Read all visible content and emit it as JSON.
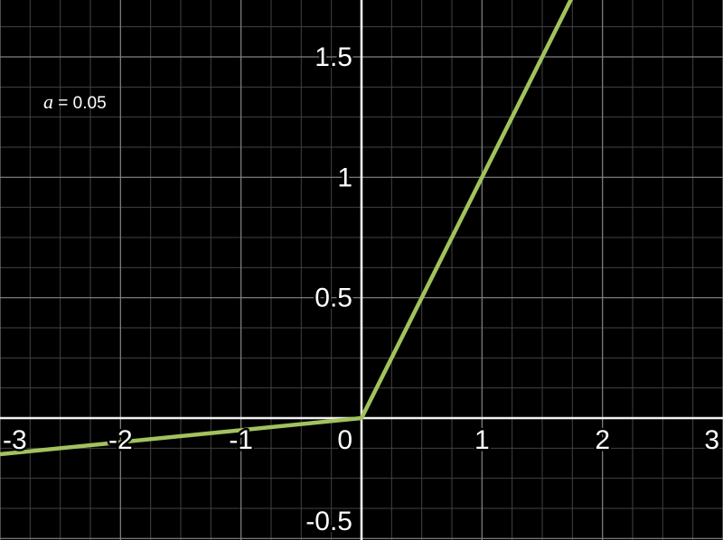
{
  "chart_data": {
    "type": "line",
    "title": "",
    "annotation": {
      "variable": "a",
      "equals": " = 0.05"
    },
    "x_axis": {
      "range": [
        -3,
        3
      ],
      "major_step": 1,
      "minor_step": 0.25,
      "ticks": [
        {
          "value": -3,
          "label": "-3"
        },
        {
          "value": -2,
          "label": "-2"
        },
        {
          "value": -1,
          "label": "-1"
        },
        {
          "value": 0,
          "label": "0"
        },
        {
          "value": 1,
          "label": "1"
        },
        {
          "value": 2,
          "label": "2"
        },
        {
          "value": 3,
          "label": "3"
        }
      ]
    },
    "y_axis": {
      "range": [
        -0.50625,
        1.73625
      ],
      "major_step": 0.5,
      "minor_step": 0.125,
      "ticks": [
        {
          "value": 1.5,
          "label": "1.5"
        },
        {
          "value": 1,
          "label": "1"
        },
        {
          "value": 0.5,
          "label": "0.5"
        },
        {
          "value": -0.5,
          "label": "-0.5"
        }
      ]
    },
    "series": [
      {
        "name": "leaky-relu-line",
        "color": "#a2c25e",
        "points": [
          [
            -3,
            -0.15
          ],
          [
            0,
            0
          ],
          [
            1.76,
            1.76
          ]
        ],
        "slope_left_of_zero": 0.05,
        "slope_right_of_zero": 1
      }
    ],
    "grid": true,
    "legend": false,
    "colors": {
      "background": "#000000",
      "minor_grid": "#424242",
      "major_grid": "#7f7f7f",
      "axis": "#f2f2f2",
      "curve": "#a2c25e",
      "label_text": "#ffffff"
    }
  }
}
